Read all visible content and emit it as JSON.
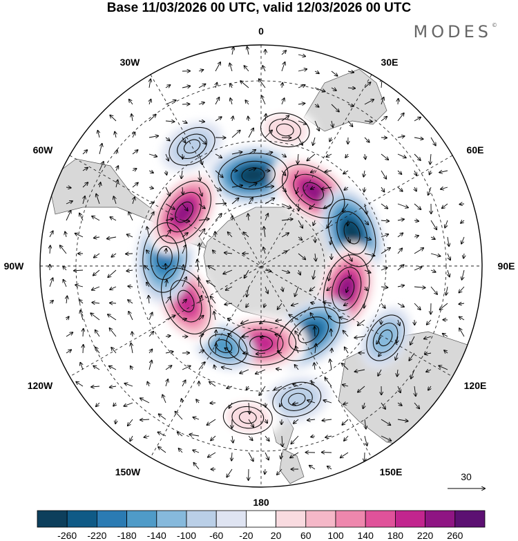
{
  "title": "Base 11/03/2026 00 UTC, valid 12/03/2026 00 UTC",
  "logo": "MODES",
  "logo_mark": "©",
  "meridian_labels": {
    "top": "0",
    "bottom": "180",
    "left": "90W",
    "right": "90E",
    "nw30": "30W",
    "ne30": "30E",
    "nw60": "60W",
    "ne60": "60E",
    "sw120": "120W",
    "se120": "120E",
    "sw150": "150W",
    "se150": "150E"
  },
  "reference_vector": "30",
  "colorbar": {
    "labels": [
      "-260",
      "-220",
      "-180",
      "-140",
      "-100",
      "-60",
      "-20",
      "20",
      "60",
      "100",
      "140",
      "180",
      "220",
      "260"
    ],
    "colors": [
      "#0d3f5c",
      "#0f5a86",
      "#2b7bb3",
      "#4f9bc8",
      "#86b9dc",
      "#bacfe7",
      "#dfe4f2",
      "#ffffff",
      "#f9dbe0",
      "#f5b8c8",
      "#ee87ad",
      "#e0529a",
      "#c2258e",
      "#8f1583",
      "#5c1072"
    ]
  },
  "anomaly_lobes": [
    {
      "sign": "neg",
      "value": -260,
      "lon": -5,
      "lat": -57
    },
    {
      "sign": "pos",
      "value": 260,
      "lon": 35,
      "lat": -57
    },
    {
      "sign": "neg",
      "value": -260,
      "lon": 70,
      "lat": -55
    },
    {
      "sign": "pos",
      "value": 260,
      "lon": 105,
      "lat": -58
    },
    {
      "sign": "neg",
      "value": -220,
      "lon": 145,
      "lat": -60
    },
    {
      "sign": "pos",
      "value": 220,
      "lon": 180,
      "lat": -62
    },
    {
      "sign": "neg",
      "value": -140,
      "lon": -155,
      "lat": -58
    },
    {
      "sign": "pos",
      "value": 220,
      "lon": -115,
      "lat": -60
    },
    {
      "sign": "neg",
      "value": -180,
      "lon": -85,
      "lat": -55
    },
    {
      "sign": "pos",
      "value": 260,
      "lon": -55,
      "lat": -56
    },
    {
      "sign": "neg",
      "value": -100,
      "lon": 120,
      "lat": -38
    },
    {
      "sign": "neg",
      "value": -60,
      "lon": 165,
      "lat": -40
    },
    {
      "sign": "pos",
      "value": 60,
      "lon": -175,
      "lat": -35
    },
    {
      "sign": "neg",
      "value": -60,
      "lon": -30,
      "lat": -40
    },
    {
      "sign": "pos",
      "value": 60,
      "lon": 10,
      "lat": -40
    }
  ]
}
